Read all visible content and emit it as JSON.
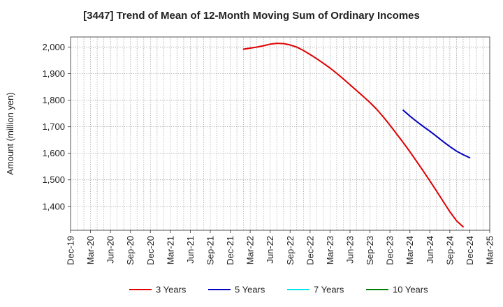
{
  "chart_data": {
    "type": "line",
    "title": "[3447]  Trend of Mean of 12-Month Moving Sum of Ordinary Incomes",
    "ylabel": "Amount (million yen)",
    "xlabel": "",
    "x_ticks": [
      "Dec-19",
      "Mar-20",
      "Jun-20",
      "Sep-20",
      "Dec-20",
      "Mar-21",
      "Jun-21",
      "Sep-21",
      "Dec-21",
      "Mar-22",
      "Jun-22",
      "Sep-22",
      "Dec-22",
      "Mar-23",
      "Jun-23",
      "Sep-23",
      "Dec-23",
      "Mar-24",
      "Jun-24",
      "Sep-24",
      "Dec-24",
      "Mar-25"
    ],
    "y_ticks": [
      1400,
      1500,
      1600,
      1700,
      1800,
      1900,
      2000
    ],
    "y_tick_labels": [
      "1,400",
      "1,500",
      "1,600",
      "1,700",
      "1,800",
      "1,900",
      "2,000"
    ],
    "ylim": [
      1310,
      2038
    ],
    "grid": true,
    "legend_position": "bottom",
    "series": [
      {
        "name": "3 Years",
        "color": "#e00000",
        "points": [
          [
            "Feb-22",
            1992
          ],
          [
            "Mar-22",
            1996
          ],
          [
            "Apr-22",
            2000
          ],
          [
            "May-22",
            2005
          ],
          [
            "Jun-22",
            2011
          ],
          [
            "Jul-22",
            2014
          ],
          [
            "Aug-22",
            2013
          ],
          [
            "Sep-22",
            2008
          ],
          [
            "Oct-22",
            2000
          ],
          [
            "Nov-22",
            1987
          ],
          [
            "Dec-22",
            1972
          ],
          [
            "Jan-23",
            1956
          ],
          [
            "Feb-23",
            1939
          ],
          [
            "Mar-23",
            1921
          ],
          [
            "Apr-23",
            1901
          ],
          [
            "May-23",
            1880
          ],
          [
            "Jun-23",
            1858
          ],
          [
            "Jul-23",
            1836
          ],
          [
            "Aug-23",
            1814
          ],
          [
            "Sep-23",
            1791
          ],
          [
            "Oct-23",
            1766
          ],
          [
            "Nov-23",
            1737
          ],
          [
            "Dec-23",
            1706
          ],
          [
            "Jan-24",
            1673
          ],
          [
            "Feb-24",
            1640
          ],
          [
            "Mar-24",
            1606
          ],
          [
            "Apr-24",
            1570
          ],
          [
            "May-24",
            1533
          ],
          [
            "Jun-24",
            1496
          ],
          [
            "Jul-24",
            1458
          ],
          [
            "Aug-24",
            1419
          ],
          [
            "Sep-24",
            1380
          ],
          [
            "Oct-24",
            1346
          ],
          [
            "Nov-24",
            1323
          ]
        ]
      },
      {
        "name": "5 Years",
        "color": "#0000c0",
        "points": [
          [
            "Feb-24",
            1762
          ],
          [
            "Mar-24",
            1740
          ],
          [
            "Apr-24",
            1720
          ],
          [
            "May-24",
            1701
          ],
          [
            "Jun-24",
            1683
          ],
          [
            "Jul-24",
            1664
          ],
          [
            "Aug-24",
            1644
          ],
          [
            "Sep-24",
            1625
          ],
          [
            "Oct-24",
            1608
          ],
          [
            "Nov-24",
            1595
          ],
          [
            "Dec-24",
            1583
          ]
        ]
      },
      {
        "name": "7 Years",
        "color": "#00e5ee",
        "points": []
      },
      {
        "name": "10 Years",
        "color": "#008000",
        "points": []
      }
    ]
  }
}
